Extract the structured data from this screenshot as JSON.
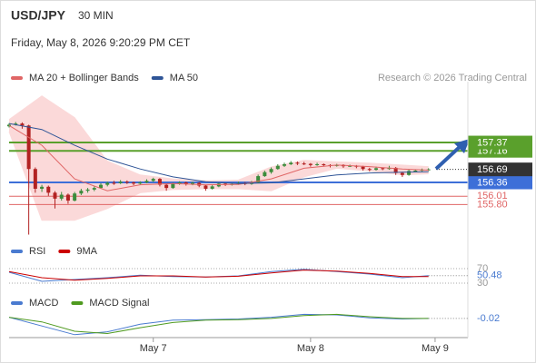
{
  "header": {
    "symbol": "USD/JPY",
    "interval": "30 MIN",
    "timestamp": "Friday, May 8, 2026 9:20:29 PM CET",
    "credit": "Research © 2026 Trading Central"
  },
  "chart_data": [
    {
      "type": "candlestick",
      "xlim": [
        0,
        70
      ],
      "ylim": [
        154.96,
        158.68
      ],
      "xticks": [
        {
          "value": 22,
          "label": "May 7"
        },
        {
          "value": 46,
          "label": "May 8"
        },
        {
          "value": 65,
          "label": "May 9"
        }
      ],
      "up_color": "#3c8c3c",
      "down_color": "#b22222",
      "candles": [
        [
          157.78,
          157.86,
          157.75,
          157.82
        ],
        [
          157.82,
          157.89,
          157.8,
          157.85
        ],
        [
          157.85,
          157.88,
          157.72,
          157.8
        ],
        [
          157.8,
          157.82,
          155.04,
          156.7
        ],
        [
          156.7,
          156.74,
          156.1,
          156.2
        ],
        [
          156.2,
          156.3,
          156.12,
          156.25
        ],
        [
          156.25,
          156.28,
          156.02,
          156.1
        ],
        [
          156.1,
          156.14,
          155.7,
          155.95
        ],
        [
          155.95,
          156.12,
          155.9,
          156.05
        ],
        [
          156.05,
          156.08,
          155.82,
          155.9
        ],
        [
          155.9,
          156.12,
          155.88,
          156.08
        ],
        [
          156.08,
          156.2,
          156.04,
          156.15
        ],
        [
          156.15,
          156.22,
          156.1,
          156.18
        ],
        [
          156.18,
          156.26,
          156.14,
          156.22
        ],
        [
          156.22,
          156.34,
          156.2,
          156.3
        ],
        [
          156.3,
          156.38,
          156.26,
          156.35
        ],
        [
          156.35,
          156.4,
          156.3,
          156.34
        ],
        [
          156.34,
          156.42,
          156.32,
          156.38
        ],
        [
          156.38,
          156.41,
          156.32,
          156.36
        ],
        [
          156.36,
          156.38,
          156.29,
          156.33
        ],
        [
          156.33,
          156.39,
          156.3,
          156.36
        ],
        [
          156.36,
          156.44,
          156.34,
          156.4
        ],
        [
          156.4,
          156.48,
          156.37,
          156.45
        ],
        [
          156.45,
          156.47,
          156.26,
          156.3
        ],
        [
          156.3,
          156.33,
          156.15,
          156.22
        ],
        [
          156.22,
          156.36,
          156.2,
          156.33
        ],
        [
          156.33,
          156.39,
          156.3,
          156.36
        ],
        [
          156.36,
          156.38,
          156.28,
          156.32
        ],
        [
          156.32,
          156.38,
          156.29,
          156.35
        ],
        [
          156.35,
          156.37,
          156.24,
          156.28
        ],
        [
          156.28,
          156.3,
          156.15,
          156.2
        ],
        [
          156.2,
          156.29,
          156.18,
          156.26
        ],
        [
          156.26,
          156.36,
          156.24,
          156.33
        ],
        [
          156.33,
          156.35,
          156.27,
          156.3
        ],
        [
          156.3,
          156.35,
          156.28,
          156.32
        ],
        [
          156.32,
          156.38,
          156.3,
          156.35
        ],
        [
          156.35,
          156.37,
          156.29,
          156.32
        ],
        [
          156.32,
          156.4,
          156.3,
          156.36
        ],
        [
          156.36,
          156.56,
          156.34,
          156.52
        ],
        [
          156.52,
          156.66,
          156.5,
          156.62
        ],
        [
          156.62,
          156.74,
          156.58,
          156.7
        ],
        [
          156.7,
          156.82,
          156.68,
          156.78
        ],
        [
          156.78,
          156.86,
          156.75,
          156.82
        ],
        [
          156.82,
          156.9,
          156.8,
          156.86
        ],
        [
          156.86,
          156.89,
          156.8,
          156.84
        ],
        [
          156.84,
          156.88,
          156.8,
          156.83
        ],
        [
          156.83,
          156.85,
          156.76,
          156.8
        ],
        [
          156.8,
          156.86,
          156.78,
          156.82
        ],
        [
          156.82,
          156.84,
          156.76,
          156.8
        ],
        [
          156.8,
          156.82,
          156.74,
          156.78
        ],
        [
          156.78,
          156.83,
          156.76,
          156.8
        ],
        [
          156.8,
          156.82,
          156.73,
          156.77
        ],
        [
          156.77,
          156.81,
          156.75,
          156.78
        ],
        [
          156.78,
          156.8,
          156.72,
          156.76
        ],
        [
          156.76,
          156.78,
          156.66,
          156.7
        ],
        [
          156.7,
          156.73,
          156.64,
          156.68
        ],
        [
          156.68,
          156.76,
          156.66,
          156.72
        ],
        [
          156.72,
          156.74,
          156.67,
          156.7
        ],
        [
          156.7,
          156.78,
          156.68,
          156.73
        ],
        [
          156.73,
          156.75,
          156.55,
          156.6
        ],
        [
          156.6,
          156.63,
          156.5,
          156.55
        ],
        [
          156.55,
          156.68,
          156.53,
          156.65
        ],
        [
          156.65,
          156.69,
          156.62,
          156.66
        ],
        [
          156.66,
          156.71,
          156.64,
          156.68
        ],
        [
          156.68,
          156.72,
          156.65,
          156.69
        ]
      ],
      "x": [
        0,
        5,
        10,
        15,
        20,
        25,
        30,
        35,
        40,
        45,
        50,
        55,
        60,
        64
      ],
      "series": [
        {
          "name": "MA 20 + Bollinger Bands",
          "color": "#e06666",
          "band_color": "#fbd9d9",
          "values": [
            157.8,
            157.3,
            156.45,
            156.15,
            156.3,
            156.33,
            156.3,
            156.31,
            156.45,
            156.72,
            156.8,
            156.76,
            156.7,
            156.67
          ],
          "upper": [
            157.95,
            158.55,
            158.0,
            156.9,
            156.55,
            156.45,
            156.4,
            156.42,
            156.75,
            156.92,
            156.88,
            156.85,
            156.8,
            156.76
          ],
          "lower": [
            157.65,
            155.4,
            155.4,
            155.7,
            156.1,
            156.18,
            156.2,
            156.2,
            156.15,
            156.5,
            156.72,
            156.65,
            156.55,
            156.58
          ]
        },
        {
          "name": "MA 50",
          "color": "#2f5597",
          "values": [
            157.85,
            157.7,
            157.3,
            156.95,
            156.7,
            156.5,
            156.38,
            156.33,
            156.35,
            156.45,
            156.55,
            156.6,
            156.62,
            156.63
          ]
        }
      ],
      "levels": [
        {
          "value": 157.37,
          "color": "#5aa02c",
          "style": "box"
        },
        {
          "value": 157.16,
          "color": "#5aa02c",
          "style": "box"
        },
        {
          "value": 156.69,
          "color": "#333333",
          "style": "box",
          "line": "dotted"
        },
        {
          "value": 156.36,
          "color": "#3d6fd8",
          "style": "box"
        },
        {
          "value": 156.01,
          "color": "#e06666",
          "style": "text"
        },
        {
          "value": 155.8,
          "label": "155.80",
          "color": "#e06666",
          "style": "text"
        }
      ]
    },
    {
      "type": "line",
      "xlim": [
        0,
        70
      ],
      "ylim": [
        15,
        90
      ],
      "yticks": [
        70,
        30
      ],
      "x": [
        0,
        5,
        10,
        15,
        20,
        25,
        30,
        35,
        40,
        45,
        50,
        55,
        60,
        64
      ],
      "series": [
        {
          "name": "RSI",
          "color": "#4a7bd0",
          "values": [
            60,
            35,
            40,
            45,
            52,
            48,
            47,
            50,
            62,
            68,
            62,
            55,
            45,
            50.48
          ],
          "last_label": true
        },
        {
          "name": "9MA",
          "color": "#cc0000",
          "values": [
            62,
            45,
            38,
            43,
            50,
            50,
            47,
            49,
            58,
            66,
            63,
            57,
            48,
            48
          ]
        }
      ]
    },
    {
      "type": "line",
      "xlim": [
        0,
        70
      ],
      "ylim": [
        -0.35,
        0.15
      ],
      "x": [
        0,
        5,
        10,
        15,
        20,
        25,
        30,
        35,
        40,
        45,
        50,
        55,
        60,
        64
      ],
      "series": [
        {
          "name": "MACD",
          "color": "#4a7bd0",
          "values": [
            0,
            -0.15,
            -0.3,
            -0.25,
            -0.12,
            -0.05,
            -0.04,
            -0.03,
            0.0,
            0.05,
            0.04,
            -0.01,
            -0.03,
            -0.02
          ],
          "last_label": true
        },
        {
          "name": "MACD Signal",
          "color": "#4f9a1f",
          "values": [
            0,
            -0.08,
            -0.24,
            -0.28,
            -0.18,
            -0.09,
            -0.05,
            -0.04,
            -0.02,
            0.03,
            0.05,
            0.01,
            -0.02,
            -0.02
          ]
        }
      ]
    }
  ]
}
